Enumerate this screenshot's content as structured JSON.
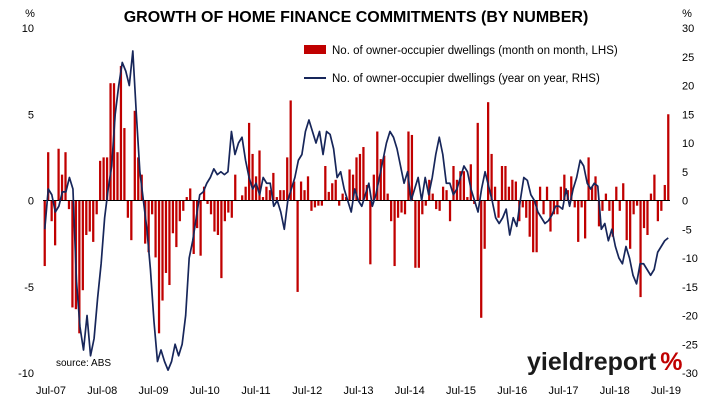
{
  "chart_data": {
    "type": "bar",
    "title": "GROWTH OF HOME FINANCE COMMITMENTS (BY NUMBER)",
    "y_left_unit": "%",
    "y_right_unit": "%",
    "y_left_lim": [
      -10,
      10
    ],
    "y_left_ticks": [
      "10",
      "5",
      "0",
      "-5",
      "-10"
    ],
    "y_right_lim": [
      -30,
      30
    ],
    "y_right_ticks": [
      "30",
      "25",
      "20",
      "15",
      "10",
      "5",
      "0",
      "-5",
      "-10",
      "-15",
      "-20",
      "-25",
      "-30"
    ],
    "x_ticks": [
      "Jul-07",
      "Jul-08",
      "Jul-09",
      "Jul-10",
      "Jul-11",
      "Jul-12",
      "Jul-13",
      "Jul-14",
      "Jul-15",
      "Jul-16",
      "Jul-17",
      "Jul-18",
      "Jul-19"
    ],
    "grid": false,
    "legend_position": "top-right",
    "legend": [
      "No. of owner-occupier dwellings (month on month, LHS)",
      "No. of owner-occupier dwellings (year on year, RHS)"
    ],
    "bar_color": "#c00000",
    "line_color": "#17265a",
    "series": [
      {
        "name": "No. of owner-occupier dwellings (month on month, LHS)",
        "axis": "left",
        "values": [
          -3.8,
          2.8,
          -1.2,
          -2.6,
          3.0,
          1.5,
          2.8,
          -0.5,
          -6.2,
          -6.3,
          -7.7,
          -5.2,
          -2.0,
          -1.8,
          -2.4,
          -0.8,
          2.3,
          2.5,
          2.5,
          6.8,
          6.8,
          2.8,
          7.8,
          4.2,
          -1.0,
          -2.3,
          5.2,
          2.5,
          1.5,
          -2.5,
          -3.0,
          -0.8,
          -3.3,
          -7.7,
          -5.8,
          -4.2,
          -4.9,
          -1.9,
          -2.7,
          -1.2,
          -0.6,
          0.2,
          0.7,
          -3.1,
          -1.6,
          -3.2,
          0.8,
          -0.2,
          -0.8,
          -1.8,
          -2.0,
          -4.5,
          -1.2,
          -0.7,
          -1.0,
          1.5,
          0.0,
          0.3,
          0.8,
          4.5,
          2.7,
          1.4,
          2.9,
          0.2,
          0.8,
          0.6,
          1.6,
          0.2,
          0.6,
          0.6,
          2.5,
          5.8,
          1.1,
          -5.3,
          1.1,
          0.6,
          1.4,
          -0.6,
          -0.4,
          -0.3,
          -0.3,
          2.0,
          0.5,
          1.0,
          1.2,
          -0.3,
          0.4,
          0.2,
          1.8,
          1.5,
          2.5,
          2.7,
          3.1,
          0.9,
          -3.7,
          1.5,
          4.0,
          2.4,
          2.6,
          0.4,
          -1.2,
          -3.8,
          -1.0,
          -0.7,
          -0.8,
          4.0,
          3.8,
          -3.9,
          -3.9,
          -0.8,
          -0.3,
          1.2,
          0.4,
          -0.5,
          -0.6,
          0.8,
          0.6,
          -1.2,
          2.0,
          1.2,
          1.7,
          1.7,
          0.2,
          2.1,
          -0.2,
          4.5,
          -6.8,
          -2.8,
          5.7,
          2.7,
          0.8,
          -1.0,
          2.0,
          2.0,
          0.8,
          1.2,
          1.1,
          -1.2,
          -0.4,
          -1.0,
          -2.1,
          -3.0,
          -3.0,
          0.8,
          -0.8,
          0.8,
          -1.8,
          -0.8,
          -0.8,
          0.8,
          1.5,
          0.6,
          1.4,
          -0.4,
          -2.4,
          -0.4,
          -2.2,
          2.5,
          0.8,
          1.4,
          -1.5,
          -0.6,
          0.4,
          -0.6,
          -2.1,
          0.8,
          -0.6,
          1.0,
          -2.3,
          -2.8,
          -0.8,
          -0.3,
          -5.6,
          -1.6,
          -2.0,
          0.4,
          1.5,
          -1.2,
          -0.6,
          0.9,
          5.0
        ]
      },
      {
        "name": "No. of owner-occupier dwellings (year on year, RHS)",
        "axis": "right",
        "values": [
          -5.0,
          2.0,
          1.0,
          -2.0,
          -1.0,
          1.5,
          1.5,
          4.0,
          2.0,
          -14.0,
          -22.0,
          -26.0,
          -20.0,
          -27.0,
          -24.0,
          -17.0,
          -11.0,
          -3.0,
          2.0,
          6.0,
          15.0,
          20.0,
          24.0,
          22.5,
          20.0,
          26.0,
          15.0,
          5.0,
          0.0,
          -5.0,
          -12.0,
          -21.0,
          -28.0,
          -26.0,
          -28.0,
          -29.5,
          -28.0,
          -25.0,
          -27.0,
          -25.0,
          -20.0,
          -10.0,
          -7.0,
          -3.0,
          1.0,
          1.5,
          3.0,
          4.0,
          5.5,
          4.5,
          5.0,
          4.5,
          5.0,
          12.0,
          8.0,
          10.0,
          11.0,
          7.0,
          4.0,
          2.0,
          3.0,
          1.0,
          4.0,
          3.0,
          3.0,
          -1.0,
          0.0,
          -2.0,
          -5.0,
          0.0,
          2.0,
          4.0,
          7.0,
          8.0,
          12.0,
          14.0,
          12.0,
          10.0,
          12.0,
          8.0,
          12.0,
          11.5,
          9.0,
          4.0,
          5.0,
          2.0,
          0.0,
          -2.0,
          2.0,
          0.0,
          -1.0,
          1.0,
          3.0,
          -1.0,
          1.0,
          4.0,
          7.0,
          10.0,
          12.0,
          11.0,
          9.0,
          6.0,
          3.0,
          5.0,
          0.0,
          2.0,
          4.0,
          0.0,
          4.0,
          1.0,
          4.0,
          8.0,
          11.0,
          8.0,
          3.0,
          3.0,
          1.0,
          2.0,
          4.0,
          6.0,
          5.0,
          2.0,
          0.0,
          -2.0,
          2.0,
          5.0,
          2.5,
          0.0,
          -3.0,
          -4.0,
          -3.0,
          -1.5,
          -6.0,
          -3.0,
          -4.5,
          0.0,
          4.0,
          3.5,
          1.0,
          0.0,
          -2.0,
          -3.0,
          -4.0,
          -3.5,
          -2.5,
          -1.0,
          -1.0,
          -1.5,
          2.0,
          -1.0,
          2.0,
          4.0,
          7.0,
          6.0,
          3.0,
          2.0,
          3.0,
          2.5,
          -5.0,
          -4.0,
          -7.0,
          -5.0,
          -8.0,
          -10.0,
          -11.0,
          -8.0,
          -10.0,
          -13.0,
          -14.5,
          -11.0,
          -11.0,
          -12.0,
          -13.0,
          -12.0,
          -9.0,
          -8.0,
          -7.0,
          -6.5
        ]
      }
    ]
  },
  "source_text": "source: ABS",
  "brand": {
    "main": "yield",
    "accent": "report",
    "symbol": "%",
    "main_color": "#1a1a1a",
    "accent_color": "#c00000"
  }
}
